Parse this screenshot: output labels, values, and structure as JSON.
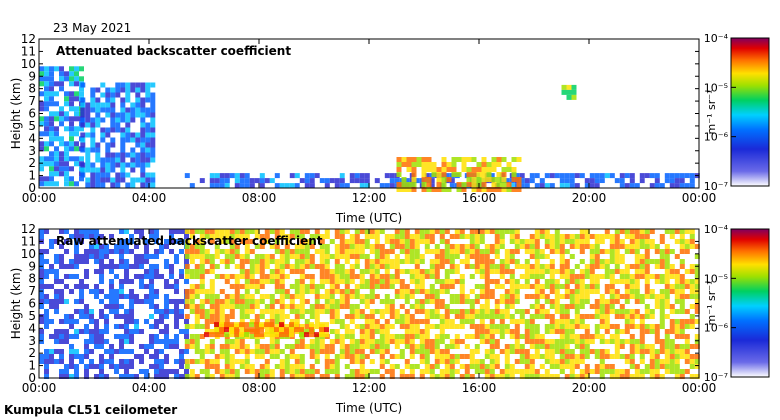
{
  "figure": {
    "date": "23 May 2021",
    "footer": "Kumpula CL51 ceilometer"
  },
  "chart_data": [
    {
      "type": "heatmap",
      "title": "Attenuated backscatter coefficient",
      "xlabel": "Time (UTC)",
      "ylabel": "Height (km)",
      "xlim": [
        "00:00",
        "00:00"
      ],
      "xticks": [
        "00:00",
        "04:00",
        "08:00",
        "12:00",
        "16:00",
        "20:00",
        "00:00"
      ],
      "ylim": [
        0,
        12
      ],
      "yticks": [
        "0",
        "1",
        "2",
        "3",
        "4",
        "5",
        "6",
        "7",
        "8",
        "9",
        "10",
        "11",
        "12"
      ],
      "colorbar": {
        "label": "m⁻¹ sr⁻¹",
        "ticks": [
          "10⁻⁴",
          "10⁻⁵",
          "10⁻⁶",
          "10⁻⁷"
        ],
        "scale": "log",
        "range": [
          1e-07,
          0.0001
        ]
      },
      "features": [
        {
          "name": "high cloud",
          "t_start_h": 0.0,
          "t_end_h": 1.5,
          "base_km": 0.3,
          "top_km": 9.8,
          "log_level": -6.2
        },
        {
          "name": "cloud streaks",
          "t_start_h": 1.5,
          "t_end_h": 4.2,
          "base_km": 0.3,
          "top_km": 8.5,
          "log_level": -6.3
        },
        {
          "name": "boundary layer",
          "t_start_h": 5.3,
          "t_end_h": 24.0,
          "base_km": 0.0,
          "top_km": 1.2,
          "log_level": -6.5
        },
        {
          "name": "convective cloud",
          "t_start_h": 13.0,
          "t_end_h": 17.5,
          "base_km": 0.0,
          "top_km": 2.5,
          "log_level": -5.0
        },
        {
          "name": "elevated cloud",
          "t_start_h": 19.0,
          "t_end_h": 19.5,
          "base_km": 7.3,
          "top_km": 8.3,
          "log_level": -5.4
        }
      ]
    },
    {
      "type": "heatmap",
      "title": "Raw attenuated backscatter coefficient",
      "xlabel": "Time (UTC)",
      "ylabel": "Height (km)",
      "xlim": [
        "00:00",
        "00:00"
      ],
      "xticks": [
        "00:00",
        "04:00",
        "08:00",
        "12:00",
        "16:00",
        "20:00",
        "00:00"
      ],
      "ylim": [
        0,
        12
      ],
      "yticks": [
        "0",
        "1",
        "2",
        "3",
        "4",
        "5",
        "6",
        "7",
        "8",
        "9",
        "10",
        "11",
        "12"
      ],
      "colorbar": {
        "label": "m⁻¹ sr⁻¹",
        "ticks": [
          "10⁻⁴",
          "10⁻⁵",
          "10⁻⁶",
          "10⁻⁷"
        ],
        "scale": "log",
        "range": [
          1e-07,
          0.0001
        ]
      },
      "features": [
        {
          "name": "noise night",
          "t_start_h": 0.0,
          "t_end_h": 5.3,
          "base_km": 0.0,
          "top_km": 12.0,
          "log_level": -6.6
        },
        {
          "name": "noise day",
          "t_start_h": 5.3,
          "t_end_h": 24.0,
          "base_km": 0.0,
          "top_km": 12.0,
          "log_level": -5.0
        },
        {
          "name": "aerosol layer",
          "t_start_h": 6.0,
          "t_end_h": 10.5,
          "base_km": 3.5,
          "top_km": 4.5,
          "log_level": -4.8
        }
      ]
    }
  ],
  "colors": {
    "colormap": [
      "#ffffff",
      "#2a2ad0",
      "#0060ff",
      "#00c0ff",
      "#00d060",
      "#a0e000",
      "#ffe000",
      "#ff7000",
      "#e00000",
      "#800060"
    ]
  }
}
